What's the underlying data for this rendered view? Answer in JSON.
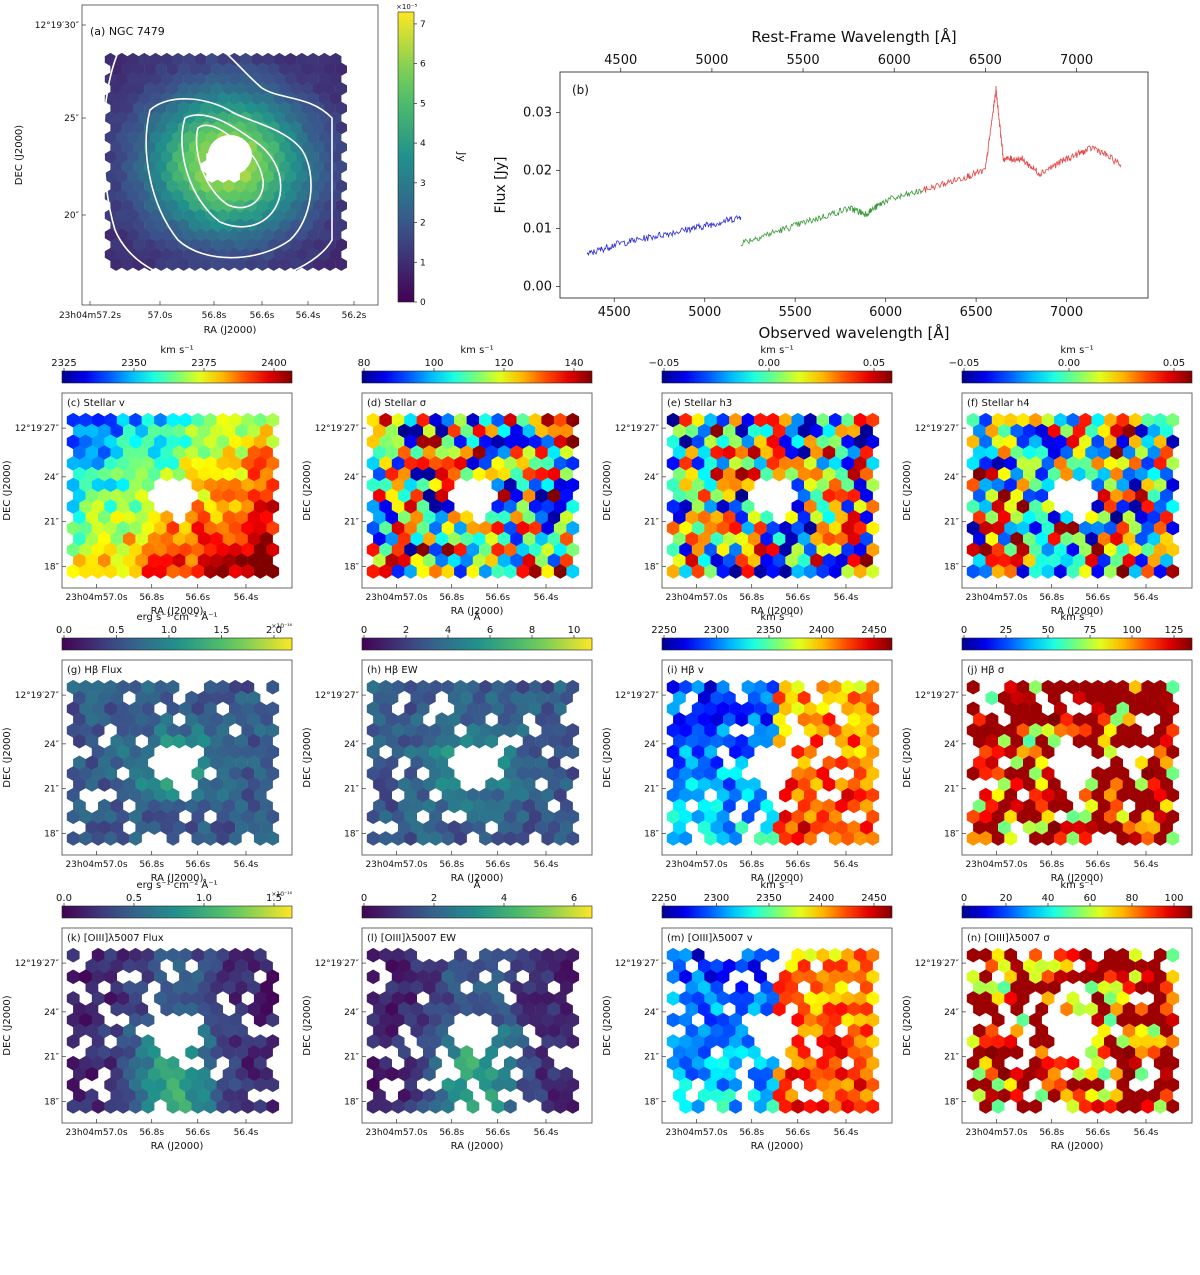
{
  "figure_title": "NGC 7479 IFU stellar and gas kinematics maps",
  "chart_data": [
    {
      "id": "a",
      "type": "heatmap",
      "label": "(a) NGC 7479",
      "xlabel": "RA (J2000)",
      "ylabel": "DEC (J2000)",
      "xticks": [
        "23h04m57.2s",
        "57.0s",
        "56.8s",
        "56.6s",
        "56.4s",
        "56.2s"
      ],
      "yticks": [
        "12°19′30″",
        "25″",
        "20″"
      ],
      "colorbar": {
        "label": "Jy",
        "multiplier": "×10⁻⁵",
        "ticks": [
          "0",
          "1",
          "2",
          "3",
          "4",
          "5",
          "6",
          "7"
        ],
        "range": [
          0,
          7.3
        ],
        "cmap": "viridis"
      },
      "contours": true,
      "pattern": "centrally_peaked_flux"
    },
    {
      "id": "b",
      "type": "line",
      "label": "(b)",
      "title": "Rest-Frame Wavelength [Å]",
      "xlabel": "Observed wavelength [Å]",
      "ylabel": "Flux [Jy]",
      "xlim": [
        4200,
        7450
      ],
      "ylim": [
        -0.002,
        0.037
      ],
      "xticks": [
        "4500",
        "5000",
        "5500",
        "6000",
        "6500",
        "7000"
      ],
      "yticks": [
        "0.00",
        "0.01",
        "0.02",
        "0.03"
      ],
      "top_ticks": [
        "4500",
        "5000",
        "5500",
        "6000",
        "6500",
        "7000"
      ],
      "series": [
        {
          "name": "blue",
          "color": "#2b2bd8",
          "x": [
            4350,
            4500,
            4700,
            4900,
            5050,
            5200
          ],
          "y": [
            0.0055,
            0.0072,
            0.0085,
            0.0098,
            0.0108,
            0.012
          ]
        },
        {
          "name": "green",
          "color": "#3a9a3a",
          "x": [
            5200,
            5400,
            5600,
            5800,
            5890,
            6000,
            6200
          ],
          "y": [
            0.0075,
            0.0095,
            0.0115,
            0.0135,
            0.0125,
            0.0148,
            0.0165
          ]
        },
        {
          "name": "red",
          "color": "#e64545",
          "x": [
            6200,
            6400,
            6550,
            6610,
            6650,
            6750,
            6850,
            7000,
            7150,
            7300
          ],
          "y": [
            0.0165,
            0.0185,
            0.02,
            0.034,
            0.022,
            0.022,
            0.0195,
            0.022,
            0.024,
            0.021
          ]
        }
      ]
    },
    {
      "id": "c",
      "type": "heatmap",
      "label": "(c) Stellar v",
      "xlabel": "RA (J2000)",
      "ylabel": "DEC (J2000)",
      "xticks": [
        "23h04m57.0s",
        "56.8s",
        "56.6s",
        "56.4s"
      ],
      "yticks": [
        "12°19′27″",
        "24″",
        "21″",
        "18″"
      ],
      "colorbar": {
        "label": "km s⁻¹",
        "ticks": [
          "2325",
          "2350",
          "2375",
          "2400"
        ],
        "cmap": "jet"
      },
      "pattern": "velocity_gradient"
    },
    {
      "id": "d",
      "type": "heatmap",
      "label": "(d) Stellar σ",
      "xlabel": "RA (J2000)",
      "ylabel": "DEC (J2000)",
      "xticks": [
        "23h04m57.0s",
        "56.8s",
        "56.6s",
        "56.4s"
      ],
      "yticks": [
        "12°19′27″",
        "24″",
        "21″",
        "18″"
      ],
      "colorbar": {
        "label": "km s⁻¹",
        "ticks": [
          "80",
          "100",
          "120",
          "140"
        ],
        "cmap": "jet"
      },
      "pattern": "noisy"
    },
    {
      "id": "e",
      "type": "heatmap",
      "label": "(e) Stellar h3",
      "xlabel": "RA (J2000)",
      "ylabel": "DEC (J2000)",
      "xticks": [
        "23h04m57.0s",
        "56.8s",
        "56.6s",
        "56.4s"
      ],
      "yticks": [
        "12°19′27″",
        "24″",
        "21″",
        "18″"
      ],
      "colorbar": {
        "label": "km s⁻¹",
        "ticks": [
          "−0.05",
          "0.00",
          "0.05"
        ],
        "cmap": "jet"
      },
      "pattern": "noisy"
    },
    {
      "id": "f",
      "type": "heatmap",
      "label": "(f) Stellar h4",
      "xlabel": "RA (J2000)",
      "ylabel": "DEC (J2000)",
      "xticks": [
        "23h04m57.0s",
        "56.8s",
        "56.6s",
        "56.4s"
      ],
      "yticks": [
        "12°19′27″",
        "24″",
        "21″",
        "18″"
      ],
      "colorbar": {
        "label": "km s⁻¹",
        "ticks": [
          "−0.05",
          "0.00",
          "0.05"
        ],
        "cmap": "jet"
      },
      "pattern": "noisy"
    },
    {
      "id": "g",
      "type": "heatmap",
      "label": "(g) Hβ Flux",
      "xlabel": "RA (J2000)",
      "ylabel": "DEC (J2000)",
      "xticks": [
        "23h04m57.0s",
        "56.8s",
        "56.6s",
        "56.4s"
      ],
      "yticks": [
        "12°19′27″",
        "24″",
        "21″",
        "18″"
      ],
      "colorbar": {
        "label": "erg s⁻¹ cm⁻² Å⁻¹",
        "multiplier": "×10⁻¹⁶",
        "ticks": [
          "0.0",
          "0.5",
          "1.0",
          "1.5",
          "2.0"
        ],
        "cmap": "viridis"
      },
      "pattern": "gas_flux"
    },
    {
      "id": "h",
      "type": "heatmap",
      "label": "(h) Hβ EW",
      "xlabel": "RA (J2000)",
      "ylabel": "DEC (J2000)",
      "xticks": [
        "23h04m57.0s",
        "56.8s",
        "56.6s",
        "56.4s"
      ],
      "yticks": [
        "12°19′27″",
        "24″",
        "21″",
        "18″"
      ],
      "colorbar": {
        "label": "Å",
        "ticks": [
          "0",
          "2",
          "4",
          "6",
          "8",
          "10"
        ],
        "cmap": "viridis"
      },
      "pattern": "gas_flux"
    },
    {
      "id": "i",
      "type": "heatmap",
      "label": "(i) Hβ v",
      "xlabel": "RA (J2000)",
      "ylabel": "DEC (J2000)",
      "xticks": [
        "23h04m57.0s",
        "56.8s",
        "56.6s",
        "56.4s"
      ],
      "yticks": [
        "12°19′27″",
        "24″",
        "21″",
        "18″"
      ],
      "colorbar": {
        "label": "km s⁻¹",
        "ticks": [
          "2250",
          "2300",
          "2350",
          "2400",
          "2450"
        ],
        "cmap": "jet"
      },
      "pattern": "gas_velocity"
    },
    {
      "id": "j",
      "type": "heatmap",
      "label": "(j) Hβ σ",
      "xlabel": "RA (J2000)",
      "ylabel": "DEC (J2000)",
      "xticks": [
        "23h04m57.0s",
        "56.8s",
        "56.6s",
        "56.4s"
      ],
      "yticks": [
        "12°19′27″",
        "24″",
        "21″",
        "18″"
      ],
      "colorbar": {
        "label": "km s⁻¹",
        "ticks": [
          "0",
          "25",
          "50",
          "75",
          "100",
          "125"
        ],
        "cmap": "jet"
      },
      "pattern": "gas_dispersion"
    },
    {
      "id": "k",
      "type": "heatmap",
      "label": "(k) [OIII]λ5007 Flux",
      "xlabel": "RA (J2000)",
      "ylabel": "DEC (J2000)",
      "xticks": [
        "23h04m57.0s",
        "56.8s",
        "56.6s",
        "56.4s"
      ],
      "yticks": [
        "12°19′27″",
        "24″",
        "21″",
        "18″"
      ],
      "colorbar": {
        "label": "erg s⁻¹ cm⁻² Å⁻¹",
        "multiplier": "×10⁻¹⁶",
        "ticks": [
          "0.0",
          "0.5",
          "1.0",
          "1.5"
        ],
        "cmap": "viridis"
      },
      "pattern": "oiii_flux"
    },
    {
      "id": "l",
      "type": "heatmap",
      "label": "(l) [OIII]λ5007 EW",
      "xlabel": "RA (J2000)",
      "ylabel": "DEC (J2000)",
      "xticks": [
        "23h04m57.0s",
        "56.8s",
        "56.6s",
        "56.4s"
      ],
      "yticks": [
        "12°19′27″",
        "24″",
        "21″",
        "18″"
      ],
      "colorbar": {
        "label": "Å",
        "ticks": [
          "0",
          "2",
          "4",
          "6"
        ],
        "cmap": "viridis"
      },
      "pattern": "oiii_flux"
    },
    {
      "id": "m",
      "type": "heatmap",
      "label": "(m) [OIII]λ5007 v",
      "xlabel": "RA (J2000)",
      "ylabel": "DEC (J2000)",
      "xticks": [
        "23h04m57.0s",
        "56.8s",
        "56.6s",
        "56.4s"
      ],
      "yticks": [
        "12°19′27″",
        "24″",
        "21″",
        "18″"
      ],
      "colorbar": {
        "label": "km s⁻¹",
        "ticks": [
          "2250",
          "2300",
          "2350",
          "2400",
          "2450"
        ],
        "cmap": "jet"
      },
      "pattern": "gas_velocity"
    },
    {
      "id": "n",
      "type": "heatmap",
      "label": "(n) [OIII]λ5007 σ",
      "xlabel": "RA (J2000)",
      "ylabel": "DEC (J2000)",
      "xticks": [
        "23h04m57.0s",
        "56.8s",
        "56.6s",
        "56.4s"
      ],
      "yticks": [
        "12°19′27″",
        "24″",
        "21″",
        "18″"
      ],
      "colorbar": {
        "label": "km s⁻¹",
        "ticks": [
          "0",
          "20",
          "40",
          "60",
          "80",
          "100"
        ],
        "cmap": "jet"
      },
      "pattern": "gas_dispersion"
    }
  ]
}
